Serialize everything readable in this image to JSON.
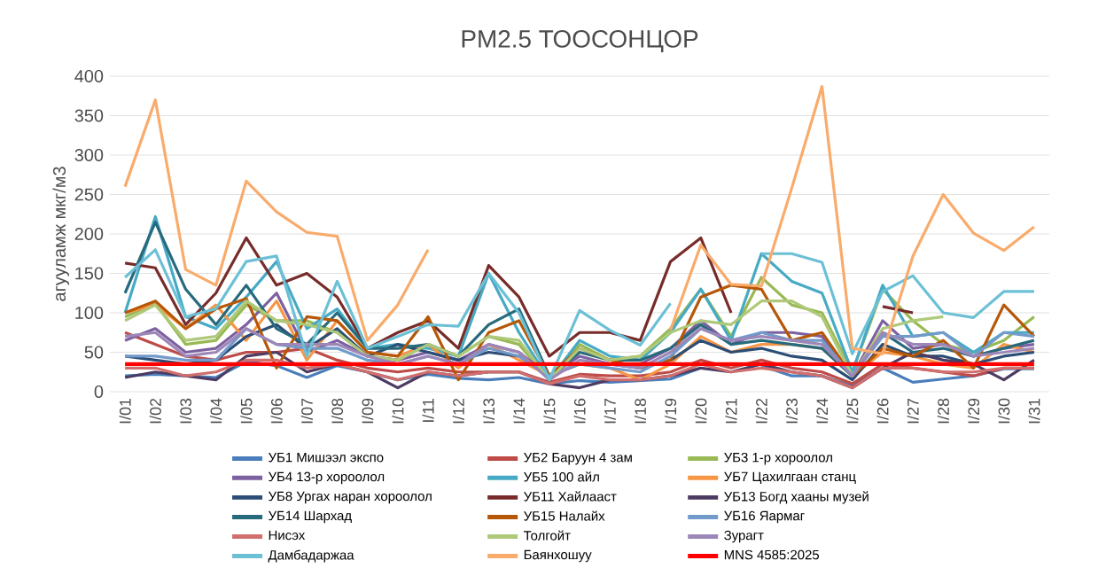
{
  "chart_data": {
    "type": "line",
    "title": "PM2.5 ТООСОНЦОР",
    "ylabel": "агууламж мкг/м3",
    "categories": [
      "I/01",
      "I/02",
      "I/03",
      "I/04",
      "I/05",
      "I/06",
      "I/07",
      "I/08",
      "I/09",
      "I/10",
      "I/11",
      "I/12",
      "I/13",
      "I/14",
      "I/15",
      "I/16",
      "I/17",
      "I/18",
      "I/19",
      "I/20",
      "I/21",
      "I/22",
      "I/23",
      "I/24",
      "I/25",
      "I/26",
      "I/27",
      "I/28",
      "I/29",
      "I/30",
      "I/31"
    ],
    "ylim": [
      0,
      400
    ],
    "yticks": [
      0,
      50,
      100,
      150,
      200,
      250,
      300,
      350,
      400
    ],
    "grid": "y",
    "legend": "bottom",
    "marker": "none",
    "line_style": "solid",
    "series": [
      {
        "name": "УБ1 Мишээл  экспо",
        "color": "#4a7ebb",
        "values": [
          20,
          22,
          20,
          18,
          38,
          33,
          18,
          33,
          25,
          15,
          22,
          17,
          15,
          18,
          10,
          14,
          12,
          14,
          16,
          30,
          null,
          33,
          20,
          20,
          7,
          30,
          12,
          16,
          20,
          29,
          29
        ]
      },
      {
        "name": "УБ2 Баруун 4 зам",
        "color": "#be4b48",
        "values": [
          75,
          60,
          45,
          40,
          50,
          50,
          55,
          40,
          30,
          25,
          30,
          25,
          25,
          25,
          12,
          22,
          20,
          20,
          25,
          40,
          30,
          40,
          30,
          25,
          10,
          35,
          30,
          25,
          20,
          30,
          30
        ]
      },
      {
        "name": "УБ3 1-р хороолол",
        "color": "#98b954",
        "values": [
          95,
          112,
          60,
          65,
          110,
          90,
          90,
          75,
          45,
          40,
          60,
          45,
          70,
          60,
          15,
          60,
          40,
          45,
          80,
          130,
          70,
          145,
          110,
          100,
          25,
          130,
          90,
          60,
          50,
          65,
          95
        ]
      },
      {
        "name": "УБ4 13-р хороолол",
        "color": "#7d60a0",
        "values": [
          65,
          80,
          50,
          55,
          85,
          125,
          50,
          65,
          45,
          40,
          50,
          40,
          60,
          50,
          20,
          45,
          35,
          35,
          55,
          90,
          60,
          75,
          75,
          70,
          20,
          90,
          55,
          60,
          45,
          55,
          60
        ]
      },
      {
        "name": "УБ5 100 айл",
        "color": "#46aac5",
        "values": [
          100,
          222,
          95,
          80,
          120,
          165,
          80,
          105,
          55,
          60,
          55,
          45,
          150,
          75,
          15,
          65,
          45,
          40,
          75,
          130,
          65,
          175,
          140,
          125,
          25,
          135,
          70,
          75,
          50,
          75,
          75
        ]
      },
      {
        "name": "УБ7 Цахилгаан  станц",
        "color": "#f79646",
        "values": [
          100,
          110,
          80,
          110,
          65,
          115,
          40,
          90,
          50,
          45,
          60,
          30,
          60,
          40,
          20,
          35,
          30,
          15,
          35,
          70,
          50,
          60,
          60,
          55,
          20,
          50,
          45,
          35,
          30,
          60,
          50
        ]
      },
      {
        "name": "УБ8 Ургах наран хороолол",
        "color": "#2c4d75",
        "values": [
          45,
          40,
          35,
          40,
          70,
          85,
          55,
          80,
          45,
          60,
          50,
          40,
          50,
          45,
          20,
          35,
          35,
          30,
          40,
          65,
          50,
          55,
          45,
          40,
          15,
          60,
          45,
          45,
          35,
          45,
          50
        ]
      },
      {
        "name": "УБ11 Хайлааст",
        "color": "#772c2a",
        "values": [
          163,
          157,
          85,
          125,
          195,
          135,
          150,
          120,
          55,
          75,
          90,
          55,
          160,
          120,
          45,
          75,
          75,
          65,
          165,
          195,
          100,
          null,
          null,
          null,
          null,
          108,
          100,
          null,
          null,
          null,
          null
        ]
      },
      {
        "name": "УБ13 Богд хааны музей",
        "color": "#4d3b62",
        "values": [
          18,
          25,
          20,
          15,
          45,
          50,
          25,
          35,
          25,
          5,
          25,
          20,
          25,
          25,
          10,
          5,
          15,
          15,
          20,
          30,
          25,
          35,
          25,
          20,
          5,
          30,
          50,
          40,
          35,
          15,
          40
        ]
      },
      {
        "name": "УБ14 Шархад",
        "color": "#276a7c",
        "values": [
          125,
          215,
          130,
          85,
          135,
          80,
          60,
          100,
          55,
          55,
          60,
          45,
          85,
          105,
          20,
          50,
          40,
          40,
          55,
          85,
          60,
          65,
          60,
          55,
          20,
          75,
          50,
          55,
          45,
          55,
          65
        ]
      },
      {
        "name": "УБ15 Налайх",
        "color": "#b65708",
        "values": [
          100,
          115,
          80,
          105,
          118,
          30,
          95,
          90,
          50,
          45,
          95,
          15,
          75,
          90,
          20,
          55,
          40,
          30,
          40,
          120,
          135,
          130,
          65,
          75,
          20,
          55,
          45,
          65,
          30,
          110,
          70
        ]
      },
      {
        "name": "УБ16 Яармаг",
        "color": "#729aca",
        "values": [
          45,
          45,
          40,
          40,
          80,
          60,
          55,
          55,
          40,
          35,
          45,
          35,
          55,
          45,
          20,
          35,
          30,
          25,
          45,
          80,
          65,
          75,
          65,
          65,
          20,
          70,
          70,
          75,
          45,
          75,
          70
        ]
      },
      {
        "name": "Нисэх",
        "color": "#d06f6d",
        "values": [
          30,
          30,
          20,
          25,
          40,
          40,
          30,
          35,
          25,
          15,
          25,
          20,
          25,
          25,
          10,
          20,
          15,
          15,
          20,
          35,
          25,
          30,
          25,
          20,
          5,
          30,
          30,
          25,
          25,
          30,
          30
        ]
      },
      {
        "name": "Толгойт",
        "color": "#afc97a",
        "values": [
          90,
          110,
          65,
          70,
          115,
          90,
          85,
          75,
          45,
          40,
          60,
          45,
          70,
          65,
          15,
          55,
          40,
          45,
          75,
          90,
          85,
          115,
          115,
          95,
          20,
          80,
          90,
          95,
          null,
          null,
          null
        ]
      },
      {
        "name": "Зурагт",
        "color": "#9d87b8",
        "values": [
          70,
          75,
          45,
          50,
          80,
          60,
          60,
          60,
          45,
          35,
          45,
          35,
          60,
          50,
          15,
          40,
          35,
          30,
          50,
          80,
          65,
          70,
          65,
          60,
          20,
          75,
          60,
          60,
          45,
          50,
          55
        ]
      },
      {
        "name": "Дамбадаржаа",
        "color": "#6cc0d6",
        "values": [
          145,
          180,
          95,
          105,
          165,
          172,
          45,
          140,
          55,
          70,
          85,
          83,
          150,
          100,
          15,
          103,
          78,
          59,
          112,
          null,
          null,
          175,
          175,
          164,
          48,
          127,
          147,
          100,
          94,
          127,
          127
        ]
      },
      {
        "name": "Баянхошуу",
        "color": "#f9ab6b",
        "values": [
          260,
          370,
          155,
          135,
          267,
          228,
          202,
          197,
          65,
          110,
          180,
          null,
          null,
          null,
          null,
          null,
          null,
          null,
          78,
          186,
          136,
          134,
          258,
          387,
          55,
          48,
          172,
          250,
          201,
          179,
          209
        ]
      },
      {
        "name": "MNS 4585:2025",
        "color": "#ff0000",
        "values": [
          35,
          35,
          35,
          35,
          35,
          35,
          35,
          35,
          35,
          35,
          35,
          35,
          35,
          35,
          35,
          35,
          35,
          35,
          35,
          35,
          35,
          35,
          35,
          35,
          35,
          35,
          35,
          35,
          35,
          35,
          35
        ]
      }
    ]
  }
}
